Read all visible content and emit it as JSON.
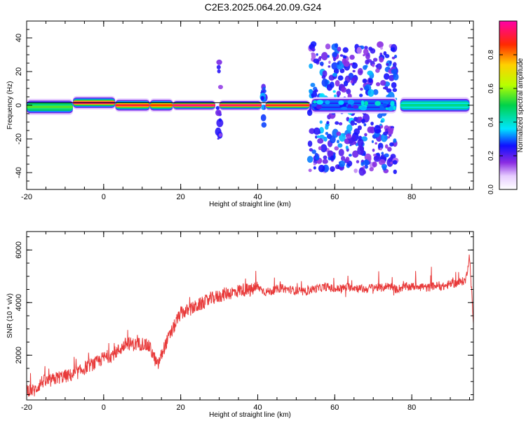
{
  "title": "C2E3.2025.064.20.09.G24",
  "chart_data": [
    {
      "type": "heatmap",
      "title": "C2E3.2025.064.20.09.G24",
      "xlabel": "Height of straight line (km)",
      "ylabel": "Frequency (Hz)",
      "xlim": [
        -20,
        96
      ],
      "ylim": [
        -50,
        50
      ],
      "x_ticks": [
        -20,
        0,
        20,
        40,
        60,
        80
      ],
      "y_ticks": [
        -40,
        -20,
        0,
        20,
        40
      ],
      "colorbar": {
        "label": "Normalized spectral amplitude",
        "range": [
          0,
          1
        ],
        "ticks": [
          "0.0",
          "0.2",
          "0.4",
          "0.6",
          "0.8"
        ]
      },
      "segments": [
        {
          "x_start": -20,
          "x_end": -8,
          "center_hz": -1,
          "halfwidth_hz": 3,
          "peak": 0.55
        },
        {
          "x_start": -8,
          "x_end": 3,
          "center_hz": 1.5,
          "halfwidth_hz": 2.5,
          "peak": 0.95
        },
        {
          "x_start": 3,
          "x_end": 12,
          "center_hz": 0,
          "halfwidth_hz": 2.5,
          "peak": 0.9
        },
        {
          "x_start": 12,
          "x_end": 18,
          "center_hz": 0,
          "halfwidth_hz": 2.5,
          "peak": 0.85
        },
        {
          "x_start": 18,
          "x_end": 29,
          "center_hz": 0,
          "halfwidth_hz": 2,
          "peak": 0.97
        },
        {
          "x_start": 30,
          "x_end": 41,
          "center_hz": 0,
          "halfwidth_hz": 2,
          "peak": 0.95
        },
        {
          "x_start": 42,
          "x_end": 53.5,
          "center_hz": 0,
          "halfwidth_hz": 2,
          "peak": 0.9
        },
        {
          "x_start": 54,
          "x_end": 76,
          "center_hz": 0,
          "halfwidth_hz": 3,
          "peak": 0.3
        },
        {
          "x_start": 77,
          "x_end": 95,
          "center_hz": 0,
          "halfwidth_hz": 3,
          "peak": 0.45
        }
      ],
      "scatter_regions": [
        {
          "x_start": 29.5,
          "x_end": 30.5,
          "hz_range": [
            -27,
            27
          ],
          "level": 0.15
        },
        {
          "x_start": 41,
          "x_end": 42,
          "hz_range": [
            -12,
            12
          ],
          "level": 0.2
        },
        {
          "x_start": 53.5,
          "x_end": 76,
          "hz_range": [
            -40,
            37
          ],
          "level": 0.2
        }
      ]
    },
    {
      "type": "line",
      "xlabel": "Height of straight line (km)",
      "ylabel": "SNR (10 * v/v)",
      "xlim": [
        -20,
        96
      ],
      "ylim": [
        300,
        6700
      ],
      "x_ticks": [
        -20,
        0,
        20,
        40,
        60,
        80
      ],
      "y_ticks": [
        2000,
        4000,
        6000
      ],
      "color": "#e83a3a",
      "x": [
        -20,
        -18,
        -16,
        -14,
        -12,
        -10,
        -8,
        -6,
        -4,
        -2,
        0,
        2,
        4,
        6,
        8,
        10,
        12,
        14,
        16,
        18,
        20,
        22,
        24,
        26,
        28,
        30,
        32,
        34,
        36,
        38,
        40,
        42,
        44,
        46,
        48,
        50,
        52,
        54,
        56,
        58,
        60,
        62,
        64,
        66,
        68,
        70,
        72,
        74,
        76,
        78,
        80,
        82,
        84,
        86,
        88,
        90,
        92,
        94,
        95,
        96
      ],
      "values": [
        700,
        650,
        1000,
        1000,
        1150,
        1200,
        1250,
        1400,
        1600,
        1700,
        1900,
        2000,
        2200,
        2450,
        2400,
        2450,
        2300,
        1600,
        2400,
        3000,
        3600,
        3700,
        3850,
        4000,
        4150,
        4250,
        4350,
        4400,
        4500,
        4450,
        4600,
        4400,
        4450,
        4550,
        4500,
        4450,
        4400,
        4500,
        4550,
        4600,
        4500,
        4550,
        4600,
        4550,
        4500,
        4600,
        4550,
        4650,
        4500,
        4600,
        4600,
        4650,
        4550,
        4650,
        4600,
        4700,
        4750,
        4850,
        5800,
        3200
      ]
    }
  ]
}
